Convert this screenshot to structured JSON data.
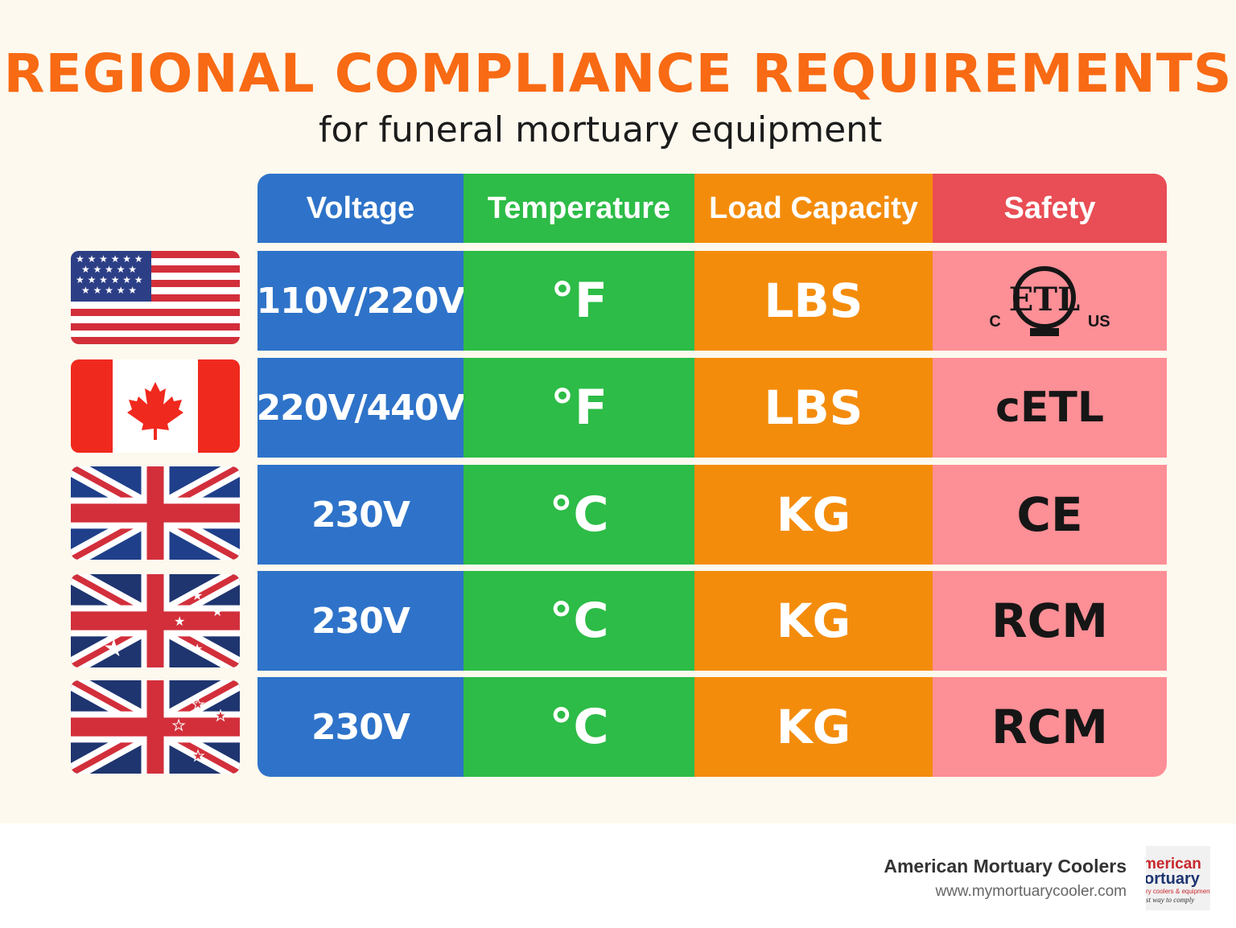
{
  "title": "REGIONAL COMPLIANCE REQUIREMENTS",
  "subtitle": "for funeral mortuary equipment",
  "columns": [
    "Voltage",
    "Temperature",
    "Load Capacity",
    "Safety"
  ],
  "rows": [
    {
      "country": "United States",
      "flag_icon": "us-flag-icon",
      "voltage": "110V/220V",
      "temperature": "°F",
      "load": "LBS",
      "safety": "ETL",
      "safety_left": "C",
      "safety_right": "US",
      "safety_icon": "etl-listed-mark-icon"
    },
    {
      "country": "Canada",
      "flag_icon": "canada-flag-icon",
      "voltage": "220V/440V",
      "temperature": "°F",
      "load": "LBS",
      "safety": "cETL"
    },
    {
      "country": "United Kingdom",
      "flag_icon": "uk-flag-icon",
      "voltage": "230V",
      "temperature": "°C",
      "load": "KG",
      "safety": "CE"
    },
    {
      "country": "Australia",
      "flag_icon": "australia-flag-icon",
      "voltage": "230V",
      "temperature": "°C",
      "load": "KG",
      "safety": "RCM"
    },
    {
      "country": "New Zealand",
      "flag_icon": "new-zealand-flag-icon",
      "voltage": "230V",
      "temperature": "°C",
      "load": "KG",
      "safety": "RCM"
    }
  ],
  "footer": {
    "brand": "American Mortuary Coolers",
    "url": "www.mymortuarycooler.com",
    "logo_line1": "merican",
    "logo_line2": "ortuary",
    "logo_line3": "ry coolers & equipment",
    "logo_line4": "st way to comply"
  },
  "colors": {
    "title": "#f86a14",
    "voltage": "#2e73c9",
    "temperature": "#2dbc47",
    "load": "#f48c0b",
    "safety_header": "#e94d55",
    "safety_cell": "#fd8f96"
  }
}
